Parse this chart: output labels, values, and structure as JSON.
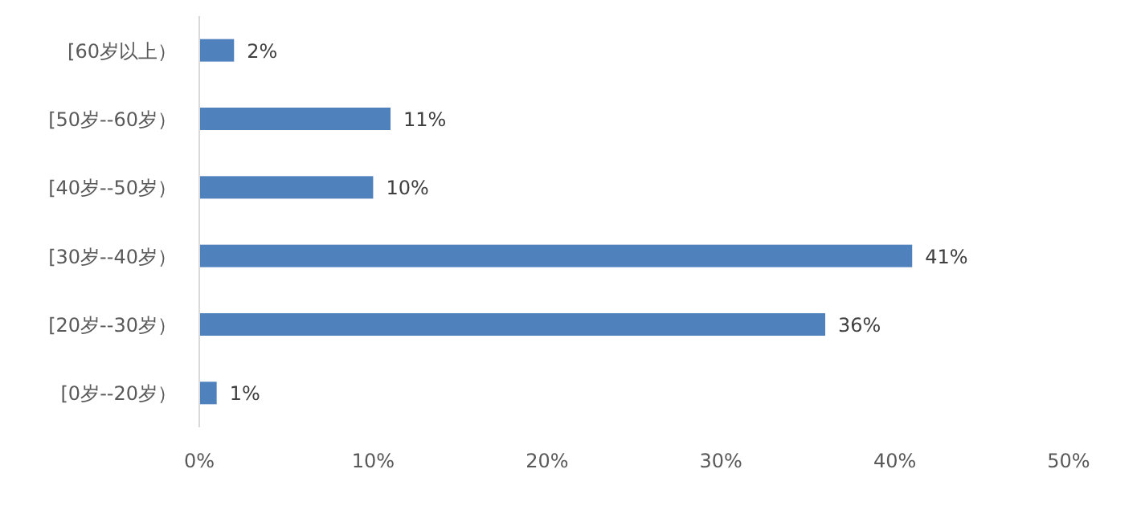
{
  "chart_data": {
    "type": "bar",
    "orientation": "horizontal",
    "categories": [
      "[60岁以上）",
      "[50岁--60岁）",
      "[40岁--50岁）",
      "[30岁--40岁）",
      "[20岁--30岁）",
      "[0岁--20岁）"
    ],
    "values": [
      2,
      11,
      10,
      41,
      36,
      1
    ],
    "value_labels": [
      "2%",
      "11%",
      "10%",
      "41%",
      "36%",
      "1%"
    ],
    "color": "#4f81bd",
    "xlim": [
      0,
      50
    ],
    "xticks": [
      {
        "value": 0,
        "label": "0%"
      },
      {
        "value": 10,
        "label": "10%"
      },
      {
        "value": 20,
        "label": "20%"
      },
      {
        "value": 30,
        "label": "30%"
      },
      {
        "value": 40,
        "label": "40%"
      },
      {
        "value": 50,
        "label": "50%"
      }
    ],
    "grid": false
  }
}
